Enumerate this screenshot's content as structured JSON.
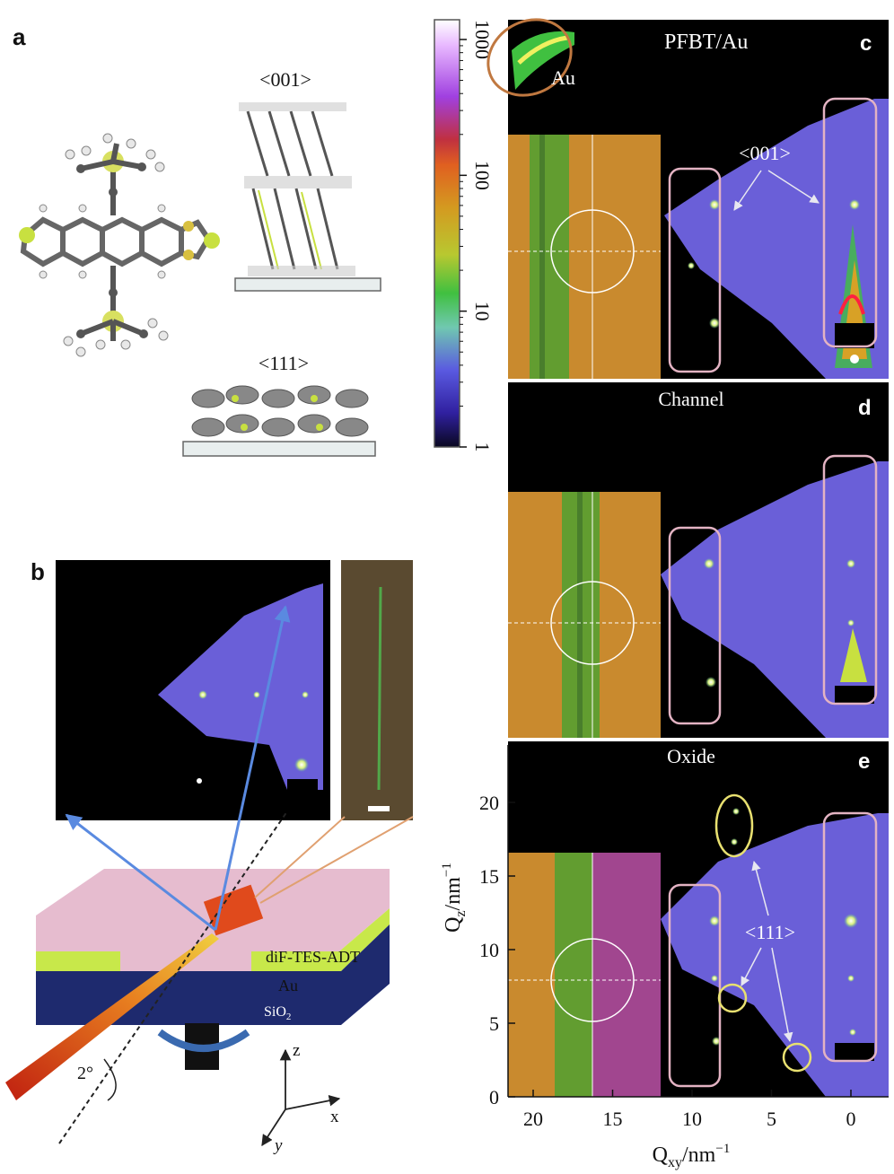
{
  "panels": {
    "a": {
      "letter": "a",
      "orientation_top": "<001>",
      "orientation_bottom": "<111>"
    },
    "b": {
      "letter": "b",
      "film_label": "diF-TES-ADT",
      "electrode_label": "Au",
      "substrate_label": "SiO",
      "substrate_subscript": "2",
      "angle_label": "2°",
      "axis_z": "z",
      "axis_x": "x",
      "axis_y": "y"
    },
    "c": {
      "letter": "c",
      "title": "PFBT/Au",
      "au_label": "Au",
      "annotation": "<001>"
    },
    "d": {
      "letter": "d",
      "title": "Channel"
    },
    "e": {
      "letter": "e",
      "title": "Oxide",
      "annotation": "<111>"
    }
  },
  "colorbar": {
    "scale": "log",
    "min": 1,
    "max": 1000,
    "ticks": [
      "1000",
      "100",
      "10",
      "1"
    ]
  },
  "axes": {
    "qz_label": "Q",
    "qz_subscript": "z",
    "qz_unit": "/nm",
    "qz_exp": "−1",
    "qz_ticks": [
      "20",
      "15",
      "10",
      "5",
      "0"
    ],
    "qxy_label": "Q",
    "qxy_subscript": "xy",
    "qxy_unit": "/nm",
    "qxy_exp": "−1",
    "qxy_ticks": [
      "20",
      "15",
      "10",
      "5",
      "0"
    ]
  },
  "colors": {
    "diffraction_background": "#6a5fd8",
    "optical_background": "#c98a2e",
    "film_pink": "#e6bccf",
    "au_green": "#c8e84a",
    "substrate_navy": "#1e2a6e",
    "highlight_box": "#e3b3c3",
    "yellow_circle": "#e8e070",
    "beam_red": "#e04a1c",
    "arrow_blue": "#5a8ae0"
  }
}
